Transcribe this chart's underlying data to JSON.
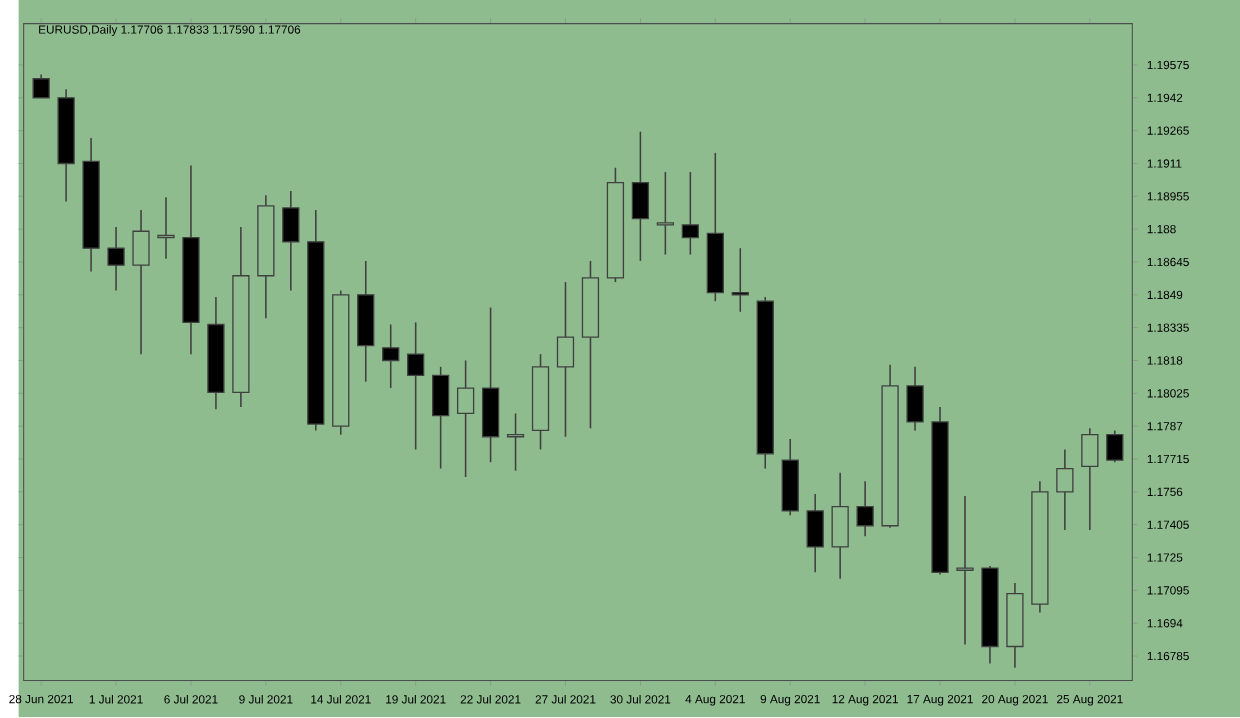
{
  "chart_data": {
    "type": "candlestick",
    "title": "EURUSD,Daily  1.17706 1.17833 1.17590 1.17706",
    "categories": [
      "28 Jun 2021",
      null,
      null,
      "1 Jul 2021",
      null,
      null,
      "6 Jul 2021",
      null,
      null,
      "9 Jul 2021",
      null,
      null,
      "14 Jul 2021",
      null,
      null,
      "19 Jul 2021",
      null,
      null,
      "22 Jul 2021",
      null,
      null,
      "27 Jul 2021",
      null,
      null,
      "30 Jul 2021",
      null,
      null,
      "4 Aug 2021",
      null,
      null,
      "9 Aug 2021",
      null,
      null,
      "12 Aug 2021",
      null,
      null,
      "17 Aug 2021",
      null,
      null,
      "20 Aug 2021",
      null,
      null,
      "25 Aug 2021",
      null
    ],
    "ohlc": [
      [
        1.1951,
        1.1953,
        1.1942,
        1.1942
      ],
      [
        1.1942,
        1.1946,
        1.1893,
        1.1911
      ],
      [
        1.1912,
        1.1923,
        1.186,
        1.1871
      ],
      [
        1.1871,
        1.1881,
        1.1851,
        1.1863
      ],
      [
        1.1863,
        1.1889,
        1.1821,
        1.1879
      ],
      [
        1.1876,
        1.1895,
        1.1866,
        1.1877
      ],
      [
        1.1876,
        1.191,
        1.1821,
        1.1836
      ],
      [
        1.1835,
        1.1848,
        1.1795,
        1.1803
      ],
      [
        1.1803,
        1.1881,
        1.1796,
        1.1858
      ],
      [
        1.1858,
        1.1896,
        1.1838,
        1.1891
      ],
      [
        1.189,
        1.1898,
        1.1851,
        1.1874
      ],
      [
        1.1874,
        1.1889,
        1.1785,
        1.1788
      ],
      [
        1.1787,
        1.1851,
        1.1783,
        1.1849
      ],
      [
        1.1849,
        1.1865,
        1.1808,
        1.1825
      ],
      [
        1.1824,
        1.1835,
        1.1805,
        1.1818
      ],
      [
        1.1821,
        1.1836,
        1.1776,
        1.1811
      ],
      [
        1.1811,
        1.1815,
        1.1767,
        1.1792
      ],
      [
        1.1793,
        1.1818,
        1.1763,
        1.1805
      ],
      [
        1.1805,
        1.1843,
        1.177,
        1.1782
      ],
      [
        1.1782,
        1.1793,
        1.1766,
        1.1783
      ],
      [
        1.1785,
        1.1821,
        1.1776,
        1.1815
      ],
      [
        1.1815,
        1.1855,
        1.1782,
        1.1829
      ],
      [
        1.1829,
        1.1865,
        1.1786,
        1.1857
      ],
      [
        1.1857,
        1.1909,
        1.1855,
        1.1902
      ],
      [
        1.1902,
        1.1926,
        1.1865,
        1.1885
      ],
      [
        1.1882,
        1.1907,
        1.1868,
        1.1883
      ],
      [
        1.1882,
        1.1907,
        1.1868,
        1.1876
      ],
      [
        1.1878,
        1.1916,
        1.1846,
        1.185
      ],
      [
        1.185,
        1.1871,
        1.1841,
        1.1849
      ],
      [
        1.1846,
        1.1848,
        1.1767,
        1.1774
      ],
      [
        1.1771,
        1.1781,
        1.1745,
        1.1747
      ],
      [
        1.1747,
        1.1755,
        1.1718,
        1.173
      ],
      [
        1.173,
        1.1765,
        1.1715,
        1.1749
      ],
      [
        1.1749,
        1.1761,
        1.1735,
        1.174
      ],
      [
        1.174,
        1.1816,
        1.1739,
        1.1806
      ],
      [
        1.1806,
        1.1815,
        1.1785,
        1.1789
      ],
      [
        1.1789,
        1.1796,
        1.1717,
        1.1718
      ],
      [
        1.1719,
        1.1754,
        1.1684,
        1.172
      ],
      [
        1.172,
        1.1721,
        1.1675,
        1.1683
      ],
      [
        1.1683,
        1.1713,
        1.1673,
        1.1708
      ],
      [
        1.1703,
        1.1761,
        1.1699,
        1.1756
      ],
      [
        1.1756,
        1.1776,
        1.1738,
        1.1767
      ],
      [
        1.1768,
        1.1786,
        1.1738,
        1.1783
      ],
      [
        1.1783,
        1.1785,
        1.177,
        1.1771
      ]
    ],
    "colors": [
      "#000000",
      "#000000",
      "#000000",
      "#000000",
      "#8fbc8f",
      "#8fbc8f",
      "#000000",
      "#000000",
      "#8fbc8f",
      "#8fbc8f",
      "#000000",
      "#000000",
      "#8fbc8f",
      "#000000",
      "#000000",
      "#000000",
      "#000000",
      "#8fbc8f",
      "#000000",
      "#8fbc8f",
      "#8fbc8f",
      "#8fbc8f",
      "#8fbc8f",
      "#8fbc8f",
      "#000000",
      "#8fbc8f",
      "#000000",
      "#000000",
      "#000000",
      "#000000",
      "#000000",
      "#000000",
      "#8fbc8f",
      "#000000",
      "#8fbc8f",
      "#000000",
      "#000000",
      "#8fbc8f",
      "#000000",
      "#8fbc8f",
      "#8fbc8f",
      "#8fbc8f",
      "#8fbc8f",
      "#000000"
    ],
    "ylim": [
      1.1667,
      1.1977
    ],
    "yticks": [
      1.19575,
      1.1942,
      1.19265,
      1.1911,
      1.18955,
      1.188,
      1.18645,
      1.1849,
      1.18335,
      1.1818,
      1.18025,
      1.1787,
      1.17715,
      1.1756,
      1.17405,
      1.1725,
      1.17095,
      1.1694,
      1.16785
    ],
    "grid": false
  }
}
